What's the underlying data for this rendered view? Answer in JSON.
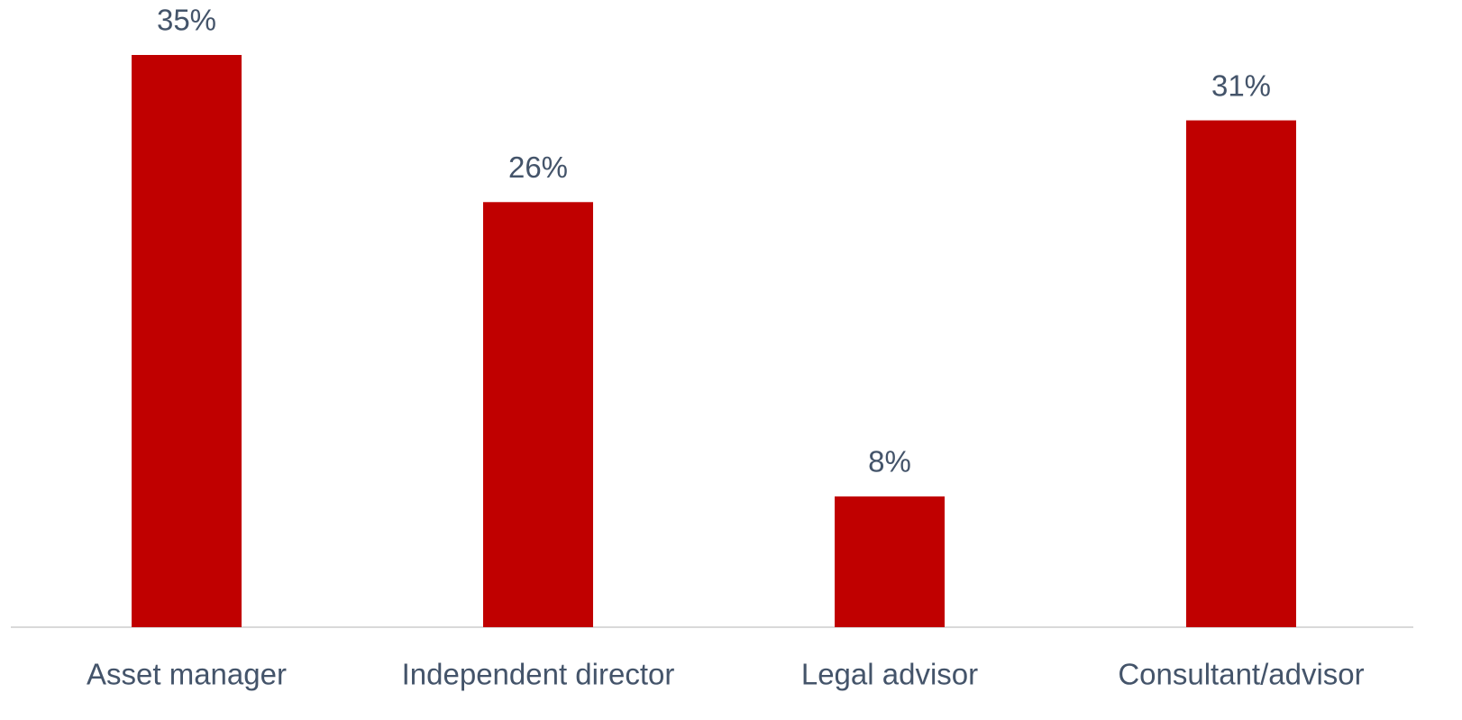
{
  "chart_data": {
    "type": "bar",
    "categories": [
      "Asset manager",
      "Independent director",
      "Legal advisor",
      "Consultant/advisor"
    ],
    "values": [
      35,
      26,
      8,
      31
    ],
    "value_labels": [
      "35%",
      "26%",
      "8%",
      "31%"
    ],
    "color": "#c00000"
  }
}
